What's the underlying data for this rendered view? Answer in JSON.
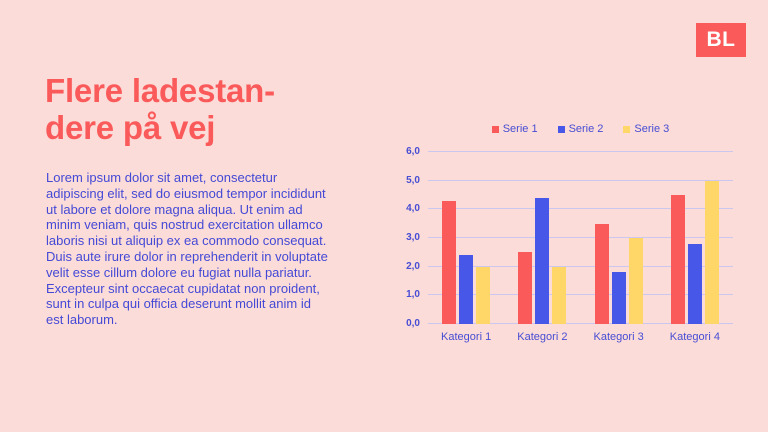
{
  "slide": {
    "background_color": "#fcdcd8",
    "accent_color": "#fa5a5a",
    "body_text_color": "#4449d6",
    "logo": {
      "text": "BL",
      "bg_color": "#fa5a5a",
      "text_color": "#ffffff"
    },
    "title": "Flere ladestan-\ndere på vej",
    "body_text": "Lorem ipsum dolor sit amet, consectetur\nadipiscing elit, sed do eiusmod tempor incididunt\nut labore et dolore magna aliqua. Ut enim ad\nminim veniam, quis nostrud exercitation ullamco\nlaboris nisi ut aliquip ex ea commodo consequat.\nDuis aute irure dolor in reprehenderit in voluptate\nvelit esse cillum dolore eu fugiat nulla pariatur.\nExcepteur sint occaecat cupidatat non proident,\nsunt in culpa qui officia deserunt mollit anim id\nest laborum."
  },
  "chart_data": {
    "type": "bar",
    "title": "",
    "xlabel": "",
    "ylabel": "",
    "categories": [
      "Kategori 1",
      "Kategori 2",
      "Kategori 3",
      "Kategori 4"
    ],
    "series": [
      {
        "name": "Serie 1",
        "color": "#fa5a5a",
        "values": [
          4.3,
          2.5,
          3.5,
          4.5
        ]
      },
      {
        "name": "Serie 2",
        "color": "#4758e8",
        "values": [
          2.4,
          4.4,
          1.8,
          2.8
        ]
      },
      {
        "name": "Serie 3",
        "color": "#fed768",
        "values": [
          2.0,
          2.0,
          3.0,
          5.0
        ]
      }
    ],
    "ylim": [
      0,
      6
    ],
    "y_ticks": [
      "0,0",
      "1,0",
      "2,0",
      "3,0",
      "4,0",
      "5,0",
      "6,0"
    ],
    "grid": true,
    "gridline_color": "#cbc7ee",
    "label_color": "#474dd4",
    "legend_position": "top"
  }
}
